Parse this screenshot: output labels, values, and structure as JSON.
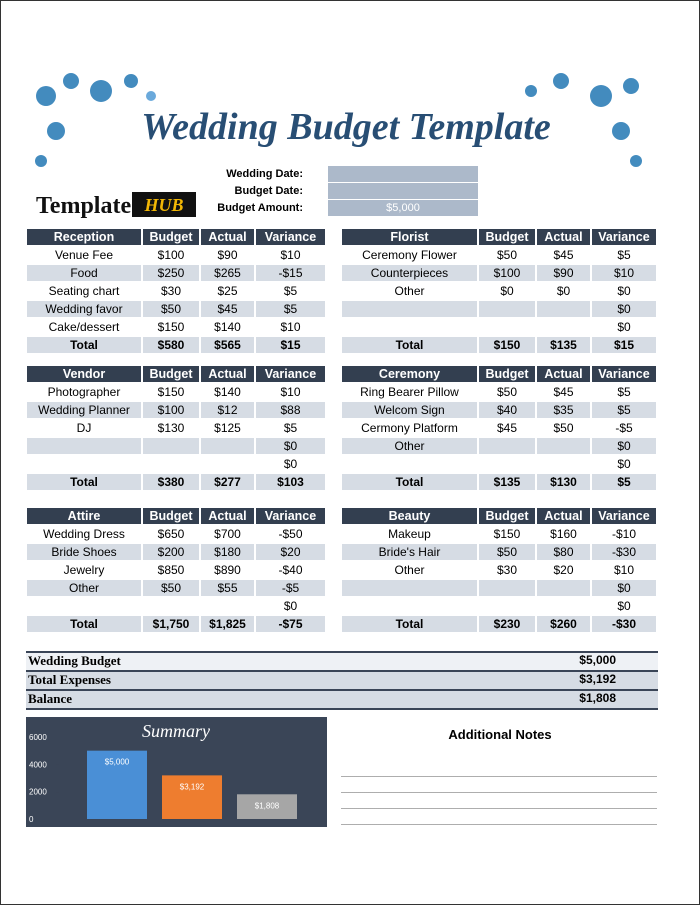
{
  "header": {
    "title": "Wedding Budget Template",
    "logo": {
      "text": "Template",
      "badge": "HUB"
    }
  },
  "fields": [
    {
      "label": "Wedding Date:"
    },
    {
      "label": "Budget Date:"
    },
    {
      "label": "Budget Amount:",
      "value": "$5,000"
    }
  ],
  "sections": [
    {
      "header": [
        "Reception",
        "Budget",
        "Actual",
        "Variance"
      ],
      "rows": [
        [
          "Venue Fee",
          "$100",
          "$90",
          "$10"
        ],
        [
          "Food",
          "$250",
          "$265",
          "-$15"
        ],
        [
          "Seating chart",
          "$30",
          "$25",
          "$5"
        ],
        [
          "Wedding favor",
          "$50",
          "$45",
          "$5"
        ],
        [
          "Cake/dessert",
          "$150",
          "$140",
          "$10"
        ],
        [
          "Total",
          "$580",
          "$565",
          "$15"
        ]
      ]
    },
    {
      "header": [
        "Florist",
        "Budget",
        "Actual",
        "Variance"
      ],
      "rows": [
        [
          "Ceremony Flower",
          "$50",
          "$45",
          "$5"
        ],
        [
          "Counterpieces",
          "$100",
          "$90",
          "$10"
        ],
        [
          "Other",
          "$0",
          "$0",
          "$0"
        ],
        [
          null,
          null,
          null,
          "$0"
        ],
        [
          null,
          null,
          null,
          "$0"
        ],
        [
          "Total",
          "$150",
          "$135",
          "$15"
        ]
      ]
    },
    {
      "header": [
        "Vendor",
        "Budget",
        "Actual",
        "Variance"
      ],
      "rows": [
        [
          "Photographer",
          "$150",
          "$140",
          "$10"
        ],
        [
          "Wedding Planner",
          "$100",
          "$12",
          "$88"
        ],
        [
          "DJ",
          "$130",
          "$125",
          "$5"
        ],
        [
          null,
          null,
          null,
          "$0"
        ],
        [
          null,
          null,
          null,
          "$0"
        ],
        [
          "Total",
          "$380",
          "$277",
          "$103"
        ]
      ]
    },
    {
      "header": [
        "Ceremony",
        "Budget",
        "Actual",
        "Variance"
      ],
      "rows": [
        [
          "Ring Bearer Pillow",
          "$50",
          "$45",
          "$5"
        ],
        [
          "Welcom Sign",
          "$40",
          "$35",
          "$5"
        ],
        [
          "Cermony Platform",
          "$45",
          "$50",
          "-$5"
        ],
        [
          "Other",
          null,
          null,
          "$0"
        ],
        [
          null,
          null,
          null,
          "$0"
        ],
        [
          "Total",
          "$135",
          "$130",
          "$5"
        ]
      ]
    },
    {
      "header": [
        "Attire",
        "Budget",
        "Actual",
        "Variance"
      ],
      "rows": [
        [
          "Wedding Dress",
          "$650",
          "$700",
          "-$50"
        ],
        [
          "Bride Shoes",
          "$200",
          "$180",
          "$20"
        ],
        [
          "Jewelry",
          "$850",
          "$890",
          "-$40"
        ],
        [
          "Other",
          "$50",
          "$55",
          "-$5"
        ],
        [
          null,
          null,
          null,
          "$0"
        ],
        [
          "Total",
          "$1,750",
          "$1,825",
          "-$75"
        ]
      ]
    },
    {
      "header": [
        "Beauty",
        "Budget",
        "Actual",
        "Variance"
      ],
      "rows": [
        [
          "Makeup",
          "$150",
          "$160",
          "-$10"
        ],
        [
          "Bride's Hair",
          "$50",
          "$80",
          "-$30"
        ],
        [
          "Other",
          "$30",
          "$20",
          "$10"
        ],
        [
          null,
          null,
          null,
          "$0"
        ],
        [
          null,
          null,
          null,
          "$0"
        ],
        [
          "Total",
          "$230",
          "$260",
          "-$30"
        ]
      ]
    }
  ],
  "totals": [
    [
      "Wedding Budget",
      "$5,000"
    ],
    [
      "Total Expenses",
      "$3,192"
    ],
    [
      "Balance",
      "$1,808"
    ]
  ],
  "summary_chart": {
    "type": "bar",
    "title": "Summary",
    "values": [
      5000,
      3192,
      1808
    ],
    "value_labels": [
      "$5,000",
      "$3,192",
      "$1,808"
    ],
    "colors": [
      "#4a8fd6",
      "#ee7d2f",
      "#a6a6a6"
    ],
    "ylim": [
      0,
      6000
    ],
    "yticks": [
      0,
      2000,
      4000,
      6000
    ]
  },
  "notes": {
    "title": "Additional Notes"
  }
}
